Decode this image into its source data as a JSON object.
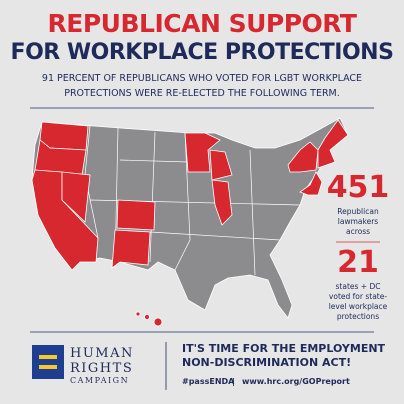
{
  "header": {
    "title_line1": "REPUBLICAN SUPPORT",
    "title_line2": "FOR WORKPLACE PROTECTIONS",
    "subtitle": [
      "91 PERCENT OF REPUBLICANS WHO VOTED FOR LGBT WORKPLACE",
      "PROTECTIONS WERE RE-ELECTED THE FOLLOWING TERM."
    ]
  },
  "stats": [
    {
      "number": 451,
      "text": [
        "Republican",
        "lawmakers",
        "across"
      ]
    },
    {
      "number": 21,
      "text": [
        "states + DC",
        "voted for state-",
        "level workplace",
        "protections"
      ]
    }
  ],
  "footer": {
    "logo": [
      "HUMAN",
      "RIGHTS",
      "CAMPAIGN"
    ],
    "headline": [
      "IT'S TIME FOR THE EMPLOYMENT",
      "NON-DISCRIMINATION ACT!"
    ],
    "hashtag": "#passENDA",
    "separator": "|",
    "url": "www.hrc.org/GOPreport"
  }
}
